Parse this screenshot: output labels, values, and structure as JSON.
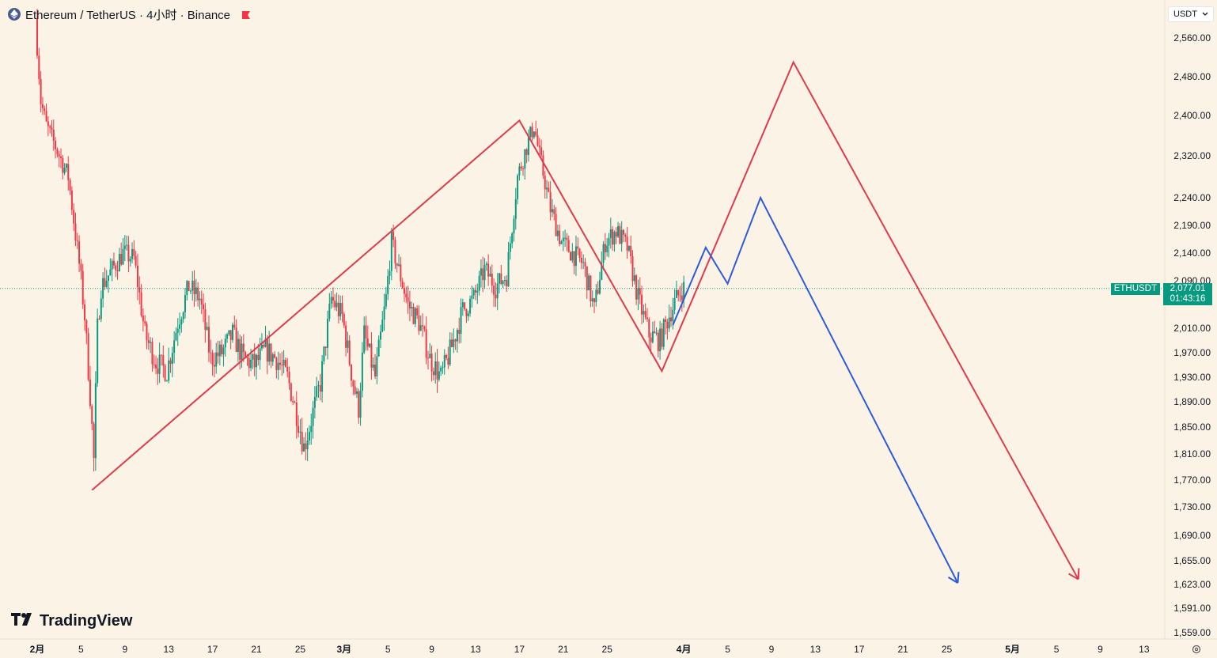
{
  "header": {
    "title": "Ethereum / TetherUS · 4小时 · Binance",
    "symbol_icon": "ethereum-icon",
    "flag_icon": "flag-icon"
  },
  "currency_selector": {
    "label": "USDT",
    "icon": "chevron-down-icon"
  },
  "logo": {
    "text": "TradingView",
    "icon": "tradingview-logo-icon"
  },
  "price_marker": {
    "symbol": "ETHUSDT",
    "price": "2,077.01",
    "countdown": "01:43:16"
  },
  "colors": {
    "background": "#fbf4e6",
    "up": "#089981",
    "down": "#f23645",
    "forecast_red": "#e0394b",
    "forecast_blue": "#2f5bd8"
  },
  "chart_data": {
    "type": "candlestick",
    "interval": "4小时",
    "y_axis": {
      "ticks": [
        {
          "label": "2,560.00",
          "value": 2560
        },
        {
          "label": "2,480.00",
          "value": 2480
        },
        {
          "label": "2,400.00",
          "value": 2400
        },
        {
          "label": "2,320.00",
          "value": 2320
        },
        {
          "label": "2,240.00",
          "value": 2240
        },
        {
          "label": "2,190.00",
          "value": 2190
        },
        {
          "label": "2,140.00",
          "value": 2140
        },
        {
          "label": "2,090.00",
          "value": 2090
        },
        {
          "label": "2,010.00",
          "value": 2010
        },
        {
          "label": "1,970.00",
          "value": 1970
        },
        {
          "label": "1,930.00",
          "value": 1930
        },
        {
          "label": "1,890.00",
          "value": 1890
        },
        {
          "label": "1,850.00",
          "value": 1850
        },
        {
          "label": "1,810.00",
          "value": 1810
        },
        {
          "label": "1,770.00",
          "value": 1770
        },
        {
          "label": "1,730.00",
          "value": 1730
        },
        {
          "label": "1,690.00",
          "value": 1690
        },
        {
          "label": "1,655.00",
          "value": 1655
        },
        {
          "label": "1,623.00",
          "value": 1623
        },
        {
          "label": "1,591.00",
          "value": 1591
        },
        {
          "label": "1,559.00",
          "value": 1559
        }
      ]
    },
    "x_axis": {
      "ticks": [
        {
          "label": "2月",
          "date": "2025-02-01"
        },
        {
          "label": "5",
          "date": "2025-02-05"
        },
        {
          "label": "9",
          "date": "2025-02-09"
        },
        {
          "label": "13",
          "date": "2025-02-13"
        },
        {
          "label": "17",
          "date": "2025-02-17"
        },
        {
          "label": "21",
          "date": "2025-02-21"
        },
        {
          "label": "25",
          "date": "2025-02-25"
        },
        {
          "label": "3月",
          "date": "2025-03-01"
        },
        {
          "label": "5",
          "date": "2025-03-05"
        },
        {
          "label": "9",
          "date": "2025-03-09"
        },
        {
          "label": "13",
          "date": "2025-03-13"
        },
        {
          "label": "17",
          "date": "2025-03-17"
        },
        {
          "label": "21",
          "date": "2025-03-21"
        },
        {
          "label": "25",
          "date": "2025-03-25"
        },
        {
          "label": "4月",
          "date": "2025-04-01"
        },
        {
          "label": "5",
          "date": "2025-04-05"
        },
        {
          "label": "9",
          "date": "2025-04-09"
        },
        {
          "label": "13",
          "date": "2025-04-13"
        },
        {
          "label": "17",
          "date": "2025-04-17"
        },
        {
          "label": "21",
          "date": "2025-04-21"
        },
        {
          "label": "25",
          "date": "2025-04-25"
        },
        {
          "label": "5月",
          "date": "2025-05-01"
        },
        {
          "label": "5",
          "date": "2025-05-05"
        },
        {
          "label": "9",
          "date": "2025-05-09"
        },
        {
          "label": "13",
          "date": "2025-05-13"
        }
      ]
    },
    "close_path": [
      [
        "2025-02-01",
        2600
      ],
      [
        "2025-02-01T12:00",
        2430
      ],
      [
        "2025-02-02",
        2380
      ],
      [
        "2025-02-03",
        2330
      ],
      [
        "2025-02-04",
        2280
      ],
      [
        "2025-02-04T12:00",
        2200
      ],
      [
        "2025-02-05",
        2120
      ],
      [
        "2025-02-05T12:00",
        2030
      ],
      [
        "2025-02-06",
        1900
      ],
      [
        "2025-02-06T08:00",
        1800
      ],
      [
        "2025-02-06T16:00",
        2010
      ],
      [
        "2025-02-07",
        2080
      ],
      [
        "2025-02-08",
        2110
      ],
      [
        "2025-02-09",
        2140
      ],
      [
        "2025-02-10",
        2130
      ],
      [
        "2025-02-11",
        2000
      ],
      [
        "2025-02-12",
        1955
      ],
      [
        "2025-02-13",
        1940
      ],
      [
        "2025-02-14",
        2020
      ],
      [
        "2025-02-15",
        2080
      ],
      [
        "2025-02-16",
        2060
      ],
      [
        "2025-02-17",
        1960
      ],
      [
        "2025-02-18",
        1970
      ],
      [
        "2025-02-19",
        2000
      ],
      [
        "2025-02-20",
        1960
      ],
      [
        "2025-02-21",
        1950
      ],
      [
        "2025-02-22",
        1975
      ],
      [
        "2025-02-23",
        1960
      ],
      [
        "2025-02-24",
        1930
      ],
      [
        "2025-02-25",
        1860
      ],
      [
        "2025-02-25T12:00",
        1820
      ],
      [
        "2025-02-26",
        1850
      ],
      [
        "2025-02-27",
        1920
      ],
      [
        "2025-02-28",
        2060
      ],
      [
        "2025-03-01",
        2030
      ],
      [
        "2025-03-02",
        1920
      ],
      [
        "2025-03-02T12:00",
        1880
      ],
      [
        "2025-03-03",
        2000
      ],
      [
        "2025-03-04",
        1930
      ],
      [
        "2025-03-05",
        2060
      ],
      [
        "2025-03-05T12:00",
        2160
      ],
      [
        "2025-03-06",
        2120
      ],
      [
        "2025-03-07",
        2050
      ],
      [
        "2025-03-08",
        2020
      ],
      [
        "2025-03-09",
        1960
      ],
      [
        "2025-03-10",
        1930
      ],
      [
        "2025-03-11",
        1980
      ],
      [
        "2025-03-12",
        2040
      ],
      [
        "2025-03-13",
        2060
      ],
      [
        "2025-03-14",
        2110
      ],
      [
        "2025-03-15",
        2080
      ],
      [
        "2025-03-16",
        2100
      ],
      [
        "2025-03-17",
        2280
      ],
      [
        "2025-03-18",
        2350
      ],
      [
        "2025-03-18T12:00",
        2380
      ],
      [
        "2025-03-19",
        2320
      ],
      [
        "2025-03-20",
        2220
      ],
      [
        "2025-03-21",
        2160
      ],
      [
        "2025-03-22",
        2140
      ],
      [
        "2025-03-23",
        2120
      ],
      [
        "2025-03-24",
        2040
      ],
      [
        "2025-03-25",
        2160
      ],
      [
        "2025-03-26",
        2180
      ],
      [
        "2025-03-27",
        2150
      ],
      [
        "2025-03-28",
        2060
      ],
      [
        "2025-03-29",
        2000
      ],
      [
        "2025-03-30",
        1990
      ],
      [
        "2025-03-31",
        2040
      ],
      [
        "2025-04-01",
        2077
      ]
    ],
    "forecast_lines": [
      {
        "name": "red",
        "color": "#e0394b",
        "points": [
          [
            "2025-02-06",
            1755
          ],
          [
            "2025-03-17",
            2390
          ],
          [
            "2025-03-30",
            1940
          ],
          [
            "2025-04-11",
            2510
          ],
          [
            "2025-05-07",
            1630
          ]
        ]
      },
      {
        "name": "blue",
        "color": "#2f5bd8",
        "points": [
          [
            "2025-03-31",
            2015
          ],
          [
            "2025-04-03",
            2150
          ],
          [
            "2025-04-05",
            2085
          ],
          [
            "2025-04-08",
            2240
          ],
          [
            "2025-04-26",
            1625
          ]
        ]
      }
    ]
  }
}
